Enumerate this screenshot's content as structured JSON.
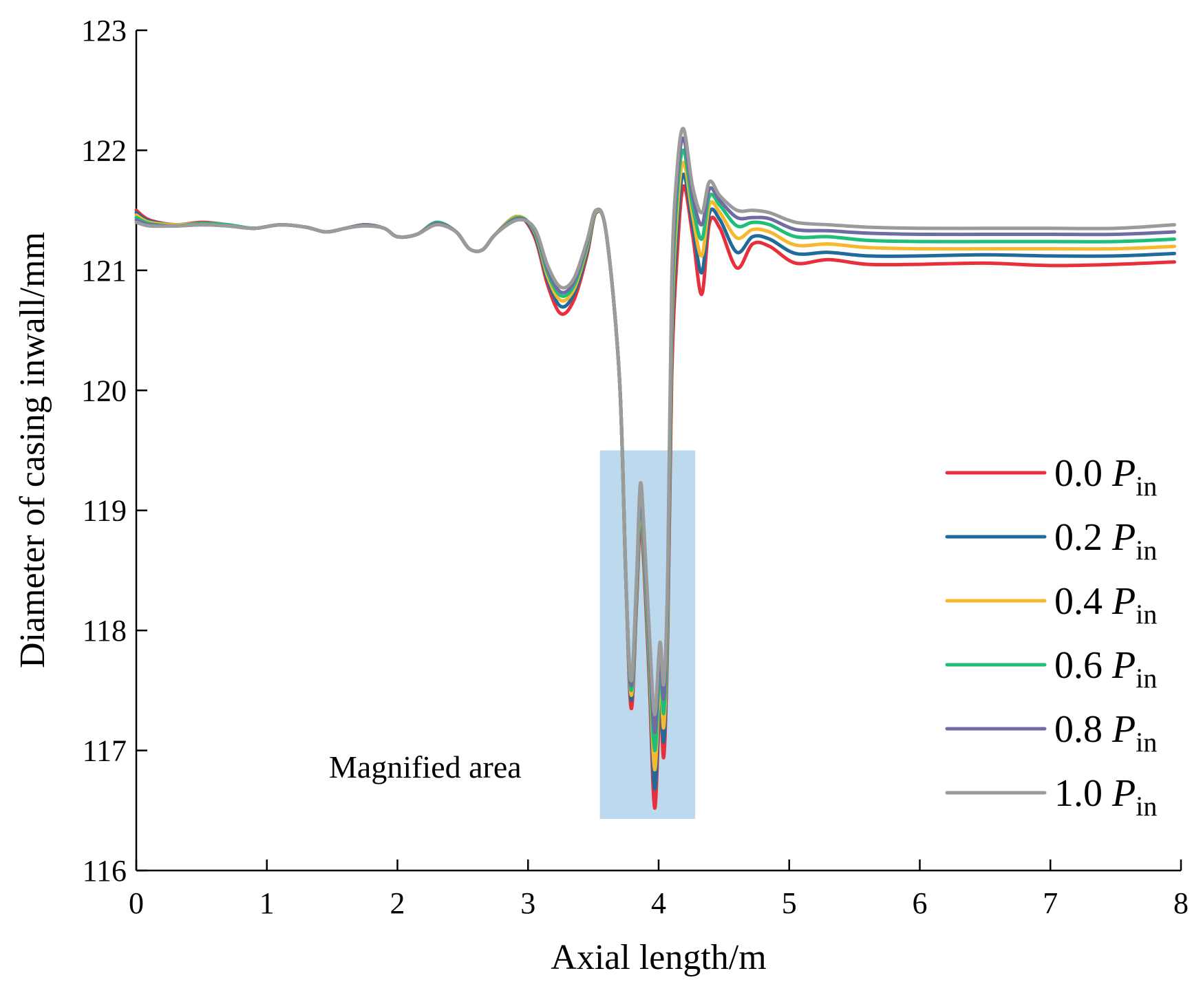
{
  "chart_data": {
    "type": "line",
    "title": "",
    "xlabel": "Axial length/m",
    "ylabel": "Diameter of casing inwall/mm",
    "xlim": [
      0,
      8
    ],
    "ylim": [
      116,
      123
    ],
    "xticks": [
      "0",
      "1",
      "2",
      "3",
      "4",
      "5",
      "6",
      "7",
      "8"
    ],
    "yticks": [
      "116",
      "117",
      "118",
      "119",
      "120",
      "121",
      "122",
      "123"
    ],
    "grid": false,
    "legend_position": "right",
    "annotation": {
      "label": "Magnified area",
      "x_range": [
        3.55,
        4.28
      ],
      "y_range": [
        116.43,
        119.5
      ],
      "color": "#bcd9ee"
    },
    "x": [
      0,
      0.1,
      0.3,
      0.5,
      0.7,
      0.9,
      1.1,
      1.3,
      1.45,
      1.6,
      1.75,
      1.9,
      2.0,
      2.15,
      2.3,
      2.45,
      2.55,
      2.65,
      2.75,
      2.92,
      3.05,
      3.15,
      3.25,
      3.35,
      3.45,
      3.52,
      3.6,
      3.7,
      3.75,
      3.79,
      3.83,
      3.86,
      3.89,
      3.93,
      3.97,
      4.01,
      4.04,
      4.07,
      4.1,
      4.14,
      4.19,
      4.26,
      4.33,
      4.39,
      4.47,
      4.6,
      4.72,
      4.85,
      5.05,
      5.3,
      5.6,
      6.0,
      6.5,
      7.0,
      7.5,
      7.95
    ],
    "series": [
      {
        "name": "0.0",
        "color": "#e8303c",
        "values": [
          121.5,
          121.42,
          121.38,
          121.4,
          121.38,
          121.35,
          121.38,
          121.36,
          121.32,
          121.35,
          121.38,
          121.35,
          121.28,
          121.3,
          121.4,
          121.32,
          121.18,
          121.17,
          121.3,
          121.45,
          121.28,
          120.88,
          120.64,
          120.75,
          121.12,
          121.48,
          121.3,
          120.1,
          118.4,
          117.35,
          118.2,
          118.9,
          118.5,
          117.55,
          116.52,
          117.4,
          116.95,
          118.0,
          120.1,
          121.1,
          121.7,
          121.3,
          120.8,
          121.4,
          121.35,
          121.02,
          121.22,
          121.2,
          121.06,
          121.09,
          121.05,
          121.05,
          121.06,
          121.04,
          121.05,
          121.07
        ]
      },
      {
        "name": "0.2",
        "color": "#1f6b9a",
        "values": [
          121.48,
          121.41,
          121.38,
          121.39,
          121.38,
          121.35,
          121.38,
          121.36,
          121.32,
          121.35,
          121.38,
          121.35,
          121.28,
          121.3,
          121.4,
          121.32,
          121.18,
          121.17,
          121.3,
          121.45,
          121.3,
          120.92,
          120.7,
          120.8,
          121.15,
          121.48,
          121.3,
          120.1,
          118.4,
          117.42,
          118.24,
          118.98,
          118.56,
          117.64,
          116.68,
          117.5,
          117.08,
          118.1,
          120.3,
          121.3,
          121.8,
          121.38,
          120.98,
          121.48,
          121.42,
          121.15,
          121.28,
          121.26,
          121.14,
          121.15,
          121.12,
          121.12,
          121.13,
          121.12,
          121.12,
          121.14
        ]
      },
      {
        "name": "0.4",
        "color": "#f5b82e",
        "values": [
          121.46,
          121.4,
          121.38,
          121.39,
          121.38,
          121.35,
          121.38,
          121.36,
          121.32,
          121.35,
          121.38,
          121.35,
          121.28,
          121.3,
          121.4,
          121.32,
          121.18,
          121.17,
          121.3,
          121.45,
          121.32,
          120.95,
          120.75,
          120.84,
          121.18,
          121.49,
          121.3,
          120.1,
          118.4,
          117.46,
          118.28,
          119.04,
          118.62,
          117.72,
          116.84,
          117.6,
          117.2,
          118.2,
          120.45,
          121.45,
          121.9,
          121.46,
          121.12,
          121.55,
          121.48,
          121.27,
          121.34,
          121.32,
          121.21,
          121.22,
          121.19,
          121.18,
          121.18,
          121.18,
          121.18,
          121.2
        ]
      },
      {
        "name": "0.6",
        "color": "#1fbf7a",
        "values": [
          121.44,
          121.39,
          121.37,
          121.39,
          121.38,
          121.35,
          121.38,
          121.36,
          121.32,
          121.35,
          121.38,
          121.35,
          121.28,
          121.3,
          121.4,
          121.32,
          121.18,
          121.17,
          121.3,
          121.44,
          121.33,
          120.98,
          120.79,
          120.87,
          121.2,
          121.5,
          121.3,
          120.1,
          118.4,
          117.5,
          118.32,
          119.1,
          118.68,
          117.8,
          117.0,
          117.7,
          117.32,
          118.3,
          120.6,
          121.6,
          122.0,
          121.54,
          121.26,
          121.62,
          121.54,
          121.37,
          121.4,
          121.38,
          121.28,
          121.28,
          121.25,
          121.24,
          121.24,
          121.24,
          121.24,
          121.26
        ]
      },
      {
        "name": "0.8",
        "color": "#6f6ba3",
        "values": [
          121.42,
          121.38,
          121.37,
          121.38,
          121.37,
          121.35,
          121.38,
          121.36,
          121.32,
          121.35,
          121.38,
          121.35,
          121.28,
          121.3,
          121.39,
          121.32,
          121.18,
          121.17,
          121.3,
          121.43,
          121.34,
          121.01,
          120.82,
          120.9,
          121.22,
          121.5,
          121.3,
          120.1,
          118.4,
          117.54,
          118.36,
          119.16,
          118.74,
          117.88,
          117.15,
          117.8,
          117.44,
          118.4,
          120.75,
          121.72,
          122.1,
          121.62,
          121.38,
          121.68,
          121.58,
          121.44,
          121.44,
          121.43,
          121.34,
          121.33,
          121.31,
          121.3,
          121.3,
          121.3,
          121.3,
          121.32
        ]
      },
      {
        "name": "1.0",
        "color": "#9b9b9b",
        "values": [
          121.4,
          121.37,
          121.37,
          121.38,
          121.37,
          121.35,
          121.38,
          121.36,
          121.32,
          121.35,
          121.37,
          121.35,
          121.28,
          121.3,
          121.38,
          121.32,
          121.18,
          121.17,
          121.3,
          121.42,
          121.35,
          121.04,
          120.86,
          120.93,
          121.24,
          121.5,
          121.3,
          120.1,
          118.4,
          117.58,
          118.4,
          119.22,
          118.8,
          117.96,
          117.3,
          117.9,
          117.56,
          118.5,
          120.9,
          121.82,
          122.18,
          121.7,
          121.48,
          121.74,
          121.62,
          121.5,
          121.5,
          121.48,
          121.4,
          121.38,
          121.36,
          121.35,
          121.35,
          121.35,
          121.35,
          121.38
        ]
      }
    ],
    "legend": {
      "suffix_var": "P",
      "suffix_sub": "in"
    }
  }
}
